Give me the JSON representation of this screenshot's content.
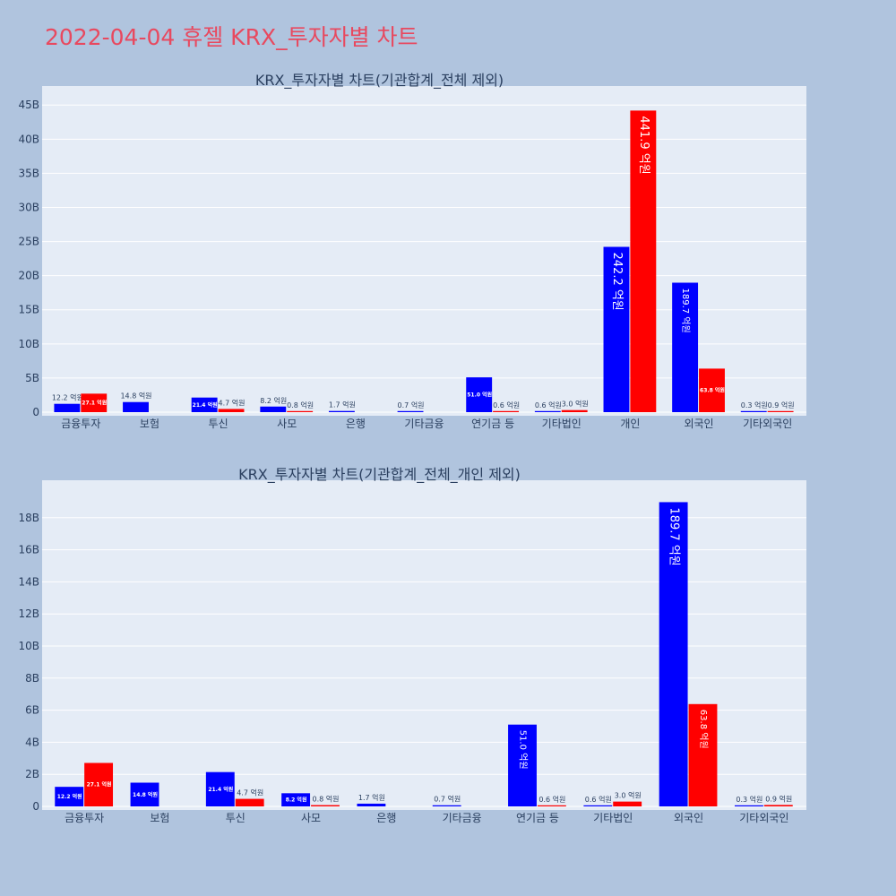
{
  "page": {
    "title": "2022-04-04 휴젤 KRX_투자자별 차트"
  },
  "colors": {
    "buy": "#0000ff",
    "sell": "#ff0000",
    "plot_bg": "#e5ecf6",
    "page_bg": "#b0c4de",
    "title": "#e8495f"
  },
  "chart_data": [
    {
      "type": "bar",
      "title": "KRX_투자자별 차트(기관합계_전체 제외)",
      "categories": [
        "금융투자",
        "보험",
        "투신",
        "사모",
        "은행",
        "기타금융",
        "연기금 등",
        "기타법인",
        "개인",
        "외국인",
        "기타외국인"
      ],
      "series": [
        {
          "color": "#0000ff",
          "values": [
            1.22,
            1.48,
            2.14,
            0.82,
            0.17,
            0.07,
            5.1,
            0.06,
            24.22,
            18.97,
            0.03
          ],
          "labels": [
            "12.2 억원",
            "14.8 억원",
            "21.4 억원",
            "8.2 억원",
            "1.7 억원",
            "0.7 억원",
            "51.0 억원",
            "0.6 억원",
            "242.2 억원",
            "189.7 억원",
            "0.3 억원"
          ]
        },
        {
          "color": "#ff0000",
          "values": [
            2.71,
            null,
            0.47,
            0.08,
            null,
            null,
            0.06,
            0.3,
            44.19,
            6.38,
            0.09
          ],
          "labels": [
            "27.1 억원",
            "",
            "4.7 억원",
            "0.8 억원",
            "",
            "",
            "0.6 억원",
            "3.0 억원",
            "441.9 억원",
            "63.8 억원",
            "0.9 억원"
          ]
        }
      ],
      "ylim": [
        0,
        47
      ],
      "yticks": [
        0,
        5,
        10,
        15,
        20,
        25,
        30,
        35,
        40,
        45
      ],
      "ytick_labels": [
        "0",
        "5B",
        "10B",
        "15B",
        "20B",
        "25B",
        "30B",
        "35B",
        "40B",
        "45B"
      ],
      "grid": true,
      "legend": "none"
    },
    {
      "type": "bar",
      "title": "KRX_투자자별 차트(기관합계_전체_개인 제외)",
      "categories": [
        "금융투자",
        "보험",
        "투신",
        "사모",
        "은행",
        "기타금융",
        "연기금 등",
        "기타법인",
        "외국인",
        "기타외국인"
      ],
      "series": [
        {
          "color": "#0000ff",
          "values": [
            1.22,
            1.48,
            2.14,
            0.82,
            0.17,
            0.07,
            5.1,
            0.06,
            18.97,
            0.03
          ],
          "labels": [
            "12.2 억원",
            "14.8 억원",
            "21.4 억원",
            "8.2 억원",
            "1.7 억원",
            "0.7 억원",
            "51.0 억원",
            "0.6 억원",
            "189.7 억원",
            "0.3 억원"
          ]
        },
        {
          "color": "#ff0000",
          "values": [
            2.71,
            null,
            0.47,
            0.08,
            null,
            null,
            0.06,
            0.3,
            6.38,
            0.09
          ],
          "labels": [
            "27.1 억원",
            "",
            "4.7 억원",
            "0.8 억원",
            "",
            "",
            "0.6 억원",
            "3.0 억원",
            "63.8 억원",
            "0.9 억원"
          ]
        }
      ],
      "ylim": [
        0,
        20
      ],
      "yticks": [
        0,
        2,
        4,
        6,
        8,
        10,
        12,
        14,
        16,
        18
      ],
      "ytick_labels": [
        "0",
        "2B",
        "4B",
        "6B",
        "8B",
        "10B",
        "12B",
        "14B",
        "16B",
        "18B"
      ],
      "grid": true,
      "legend": "none"
    }
  ]
}
